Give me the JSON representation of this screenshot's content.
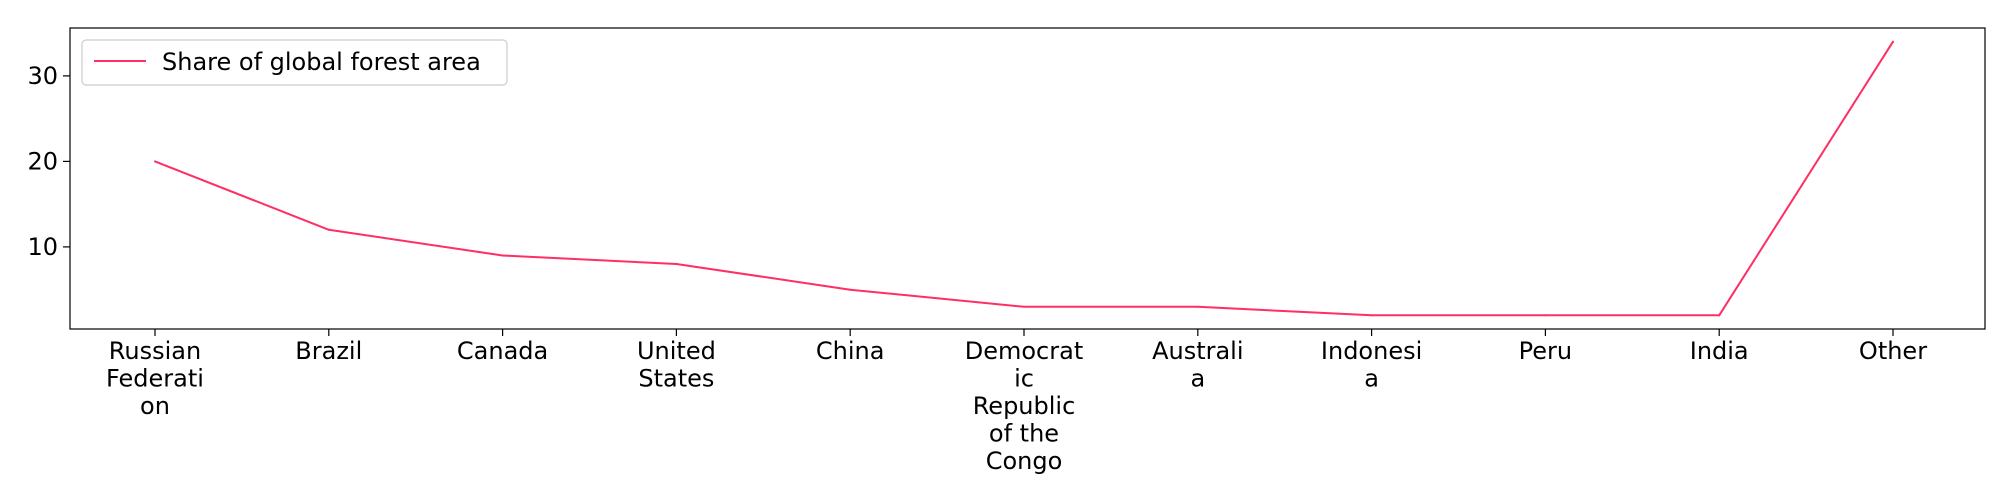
{
  "chart_data": {
    "type": "line",
    "categories": [
      "Russian Federation",
      "Brazil",
      "Canada",
      "United States",
      "China",
      "Democratic Republic of the Congo",
      "Australia",
      "Indonesia",
      "Peru",
      "India",
      "Other"
    ],
    "tick_label_lines": [
      [
        "Russian",
        "Federati",
        "on"
      ],
      [
        "Brazil"
      ],
      [
        "Canada"
      ],
      [
        "United",
        "States"
      ],
      [
        "China"
      ],
      [
        "Democrat",
        "ic",
        "Republic",
        "of the",
        "Congo"
      ],
      [
        "Australi",
        "a"
      ],
      [
        "Indonesi",
        "a"
      ],
      [
        "Peru"
      ],
      [
        "India"
      ],
      [
        "Other"
      ]
    ],
    "series": [
      {
        "name": "Share of global forest area",
        "color": "#ff2e63",
        "values": [
          20,
          12,
          9,
          8,
          5,
          3,
          3,
          2,
          2,
          2,
          34
        ]
      }
    ],
    "title": "",
    "xlabel": "",
    "ylabel": "",
    "ylim": [
      0.4,
      35.6
    ],
    "yticks": [
      10,
      20,
      30
    ],
    "grid": false,
    "legend_position": "upper-left"
  }
}
